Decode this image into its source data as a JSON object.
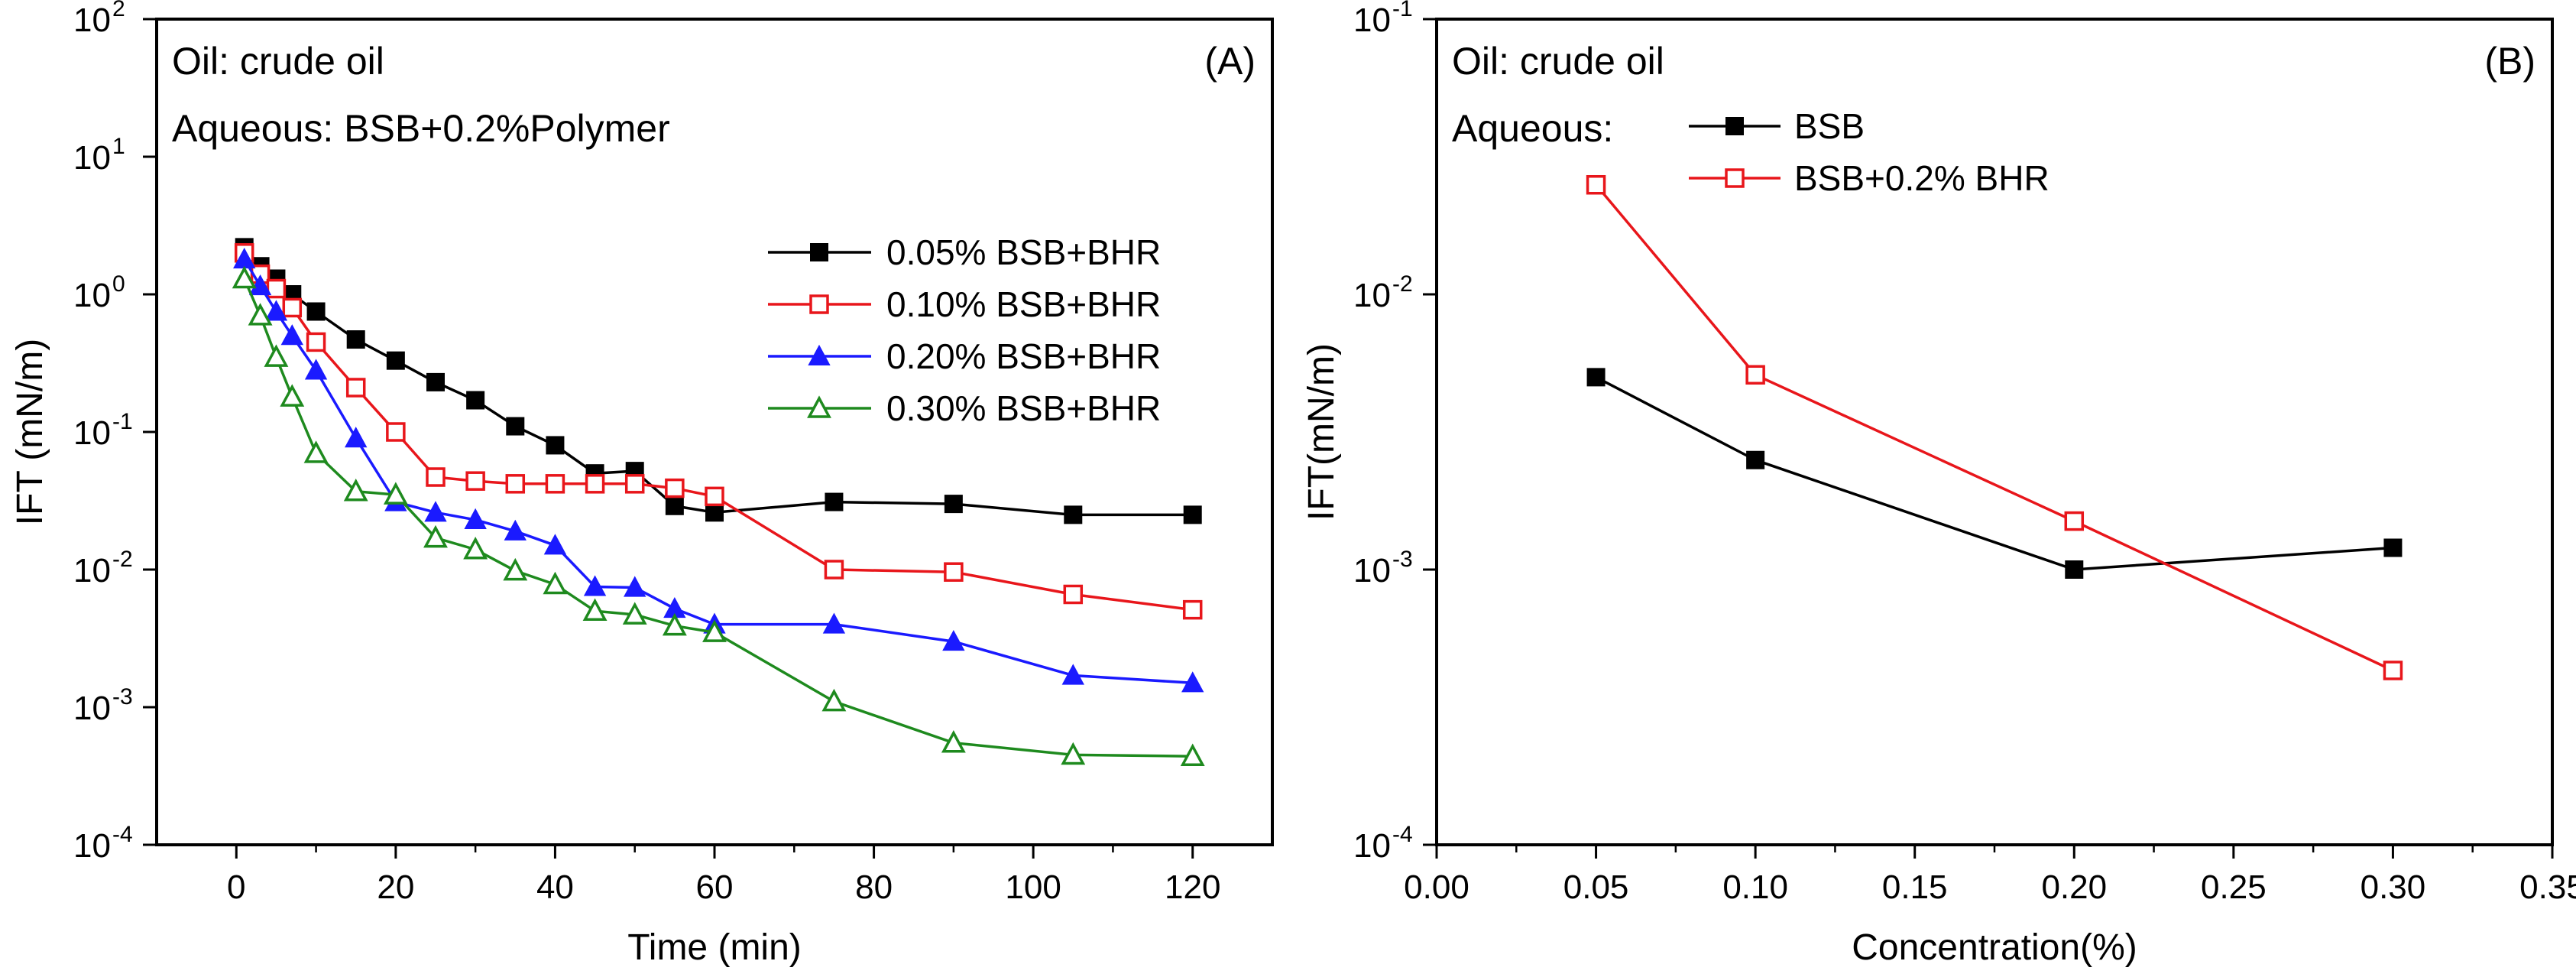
{
  "chart_data": [
    {
      "type": "line",
      "panel_label": "(A)",
      "annotations": [
        "Oil: crude oil",
        "Aqueous: BSB+0.2%Polymer"
      ],
      "xlabel": "Time (min)",
      "ylabel": "IFT (mN/m)",
      "xlim": [
        -10,
        130
      ],
      "ylim": [
        0.0001,
        100
      ],
      "yscale": "log",
      "xticks": [
        0,
        20,
        40,
        60,
        80,
        100,
        120
      ],
      "ytick_exponents": [
        -4,
        -3,
        -2,
        -1,
        0,
        1,
        2
      ],
      "ytick_base": "10",
      "legend_position": "right",
      "series": [
        {
          "name": "0.05% BSB+BHR",
          "color": "#000000",
          "marker": "square-filled",
          "x": [
            1,
            3,
            5,
            7,
            10,
            15,
            20,
            25,
            30,
            35,
            40,
            45,
            50,
            55,
            60,
            75,
            90,
            105,
            120
          ],
          "y": [
            2.2,
            1.6,
            1.3,
            1.0,
            0.75,
            0.47,
            0.33,
            0.23,
            0.17,
            0.11,
            0.08,
            0.05,
            0.052,
            0.029,
            0.026,
            0.031,
            0.03,
            0.025,
            0.025
          ]
        },
        {
          "name": "0.10% BSB+BHR",
          "color": "#e8161b",
          "marker": "square-open",
          "x": [
            1,
            3,
            5,
            7,
            10,
            15,
            20,
            25,
            30,
            35,
            40,
            45,
            50,
            55,
            60,
            75,
            90,
            105,
            120
          ],
          "y": [
            2.0,
            1.4,
            1.1,
            0.8,
            0.45,
            0.21,
            0.1,
            0.047,
            0.044,
            0.042,
            0.042,
            0.042,
            0.042,
            0.039,
            0.034,
            0.01,
            0.0096,
            0.0066,
            0.0051
          ]
        },
        {
          "name": "0.20% BSB+BHR",
          "color": "#1a1aff",
          "marker": "triangle-filled",
          "x": [
            1,
            3,
            5,
            7,
            10,
            15,
            20,
            25,
            30,
            35,
            40,
            45,
            50,
            55,
            60,
            75,
            90,
            105,
            120
          ],
          "y": [
            1.8,
            1.15,
            0.75,
            0.5,
            0.28,
            0.09,
            0.031,
            0.026,
            0.023,
            0.019,
            0.015,
            0.0075,
            0.0074,
            0.0052,
            0.004,
            0.004,
            0.003,
            0.0017,
            0.0015
          ]
        },
        {
          "name": "0.30% BSB+BHR",
          "color": "#1e8a1e",
          "marker": "triangle-open",
          "x": [
            1,
            3,
            5,
            7,
            10,
            15,
            20,
            25,
            30,
            35,
            40,
            45,
            50,
            55,
            60,
            75,
            90,
            105,
            120
          ],
          "y": [
            1.3,
            0.7,
            0.35,
            0.18,
            0.07,
            0.037,
            0.035,
            0.017,
            0.014,
            0.0098,
            0.0078,
            0.005,
            0.0047,
            0.0039,
            0.0035,
            0.0011,
            0.00055,
            0.00045,
            0.00044
          ]
        }
      ]
    },
    {
      "type": "line",
      "panel_label": "(B)",
      "annotations": [
        "Oil: crude oil",
        "Aqueous:"
      ],
      "xlabel": "Concentration(%)",
      "ylabel": "IFT(mN/m)",
      "xlim": [
        0,
        0.35
      ],
      "ylim": [
        0.0001,
        0.1
      ],
      "yscale": "log",
      "xticks": [
        "0.00",
        "0.05",
        "0.10",
        "0.15",
        "0.20",
        "0.25",
        "0.30",
        "0.35"
      ],
      "ytick_exponents": [
        -4,
        -3,
        -2,
        -1
      ],
      "ytick_base": "10",
      "legend_position": "top-left",
      "series": [
        {
          "name": "BSB",
          "color": "#000000",
          "marker": "square-filled",
          "x": [
            0.05,
            0.1,
            0.2,
            0.3
          ],
          "y": [
            0.005,
            0.0025,
            0.001,
            0.0012
          ]
        },
        {
          "name": "BSB+0.2% BHR",
          "color": "#e8161b",
          "marker": "square-open",
          "x": [
            0.05,
            0.1,
            0.2,
            0.3
          ],
          "y": [
            0.025,
            0.0051,
            0.0015,
            0.00043
          ]
        }
      ]
    }
  ]
}
